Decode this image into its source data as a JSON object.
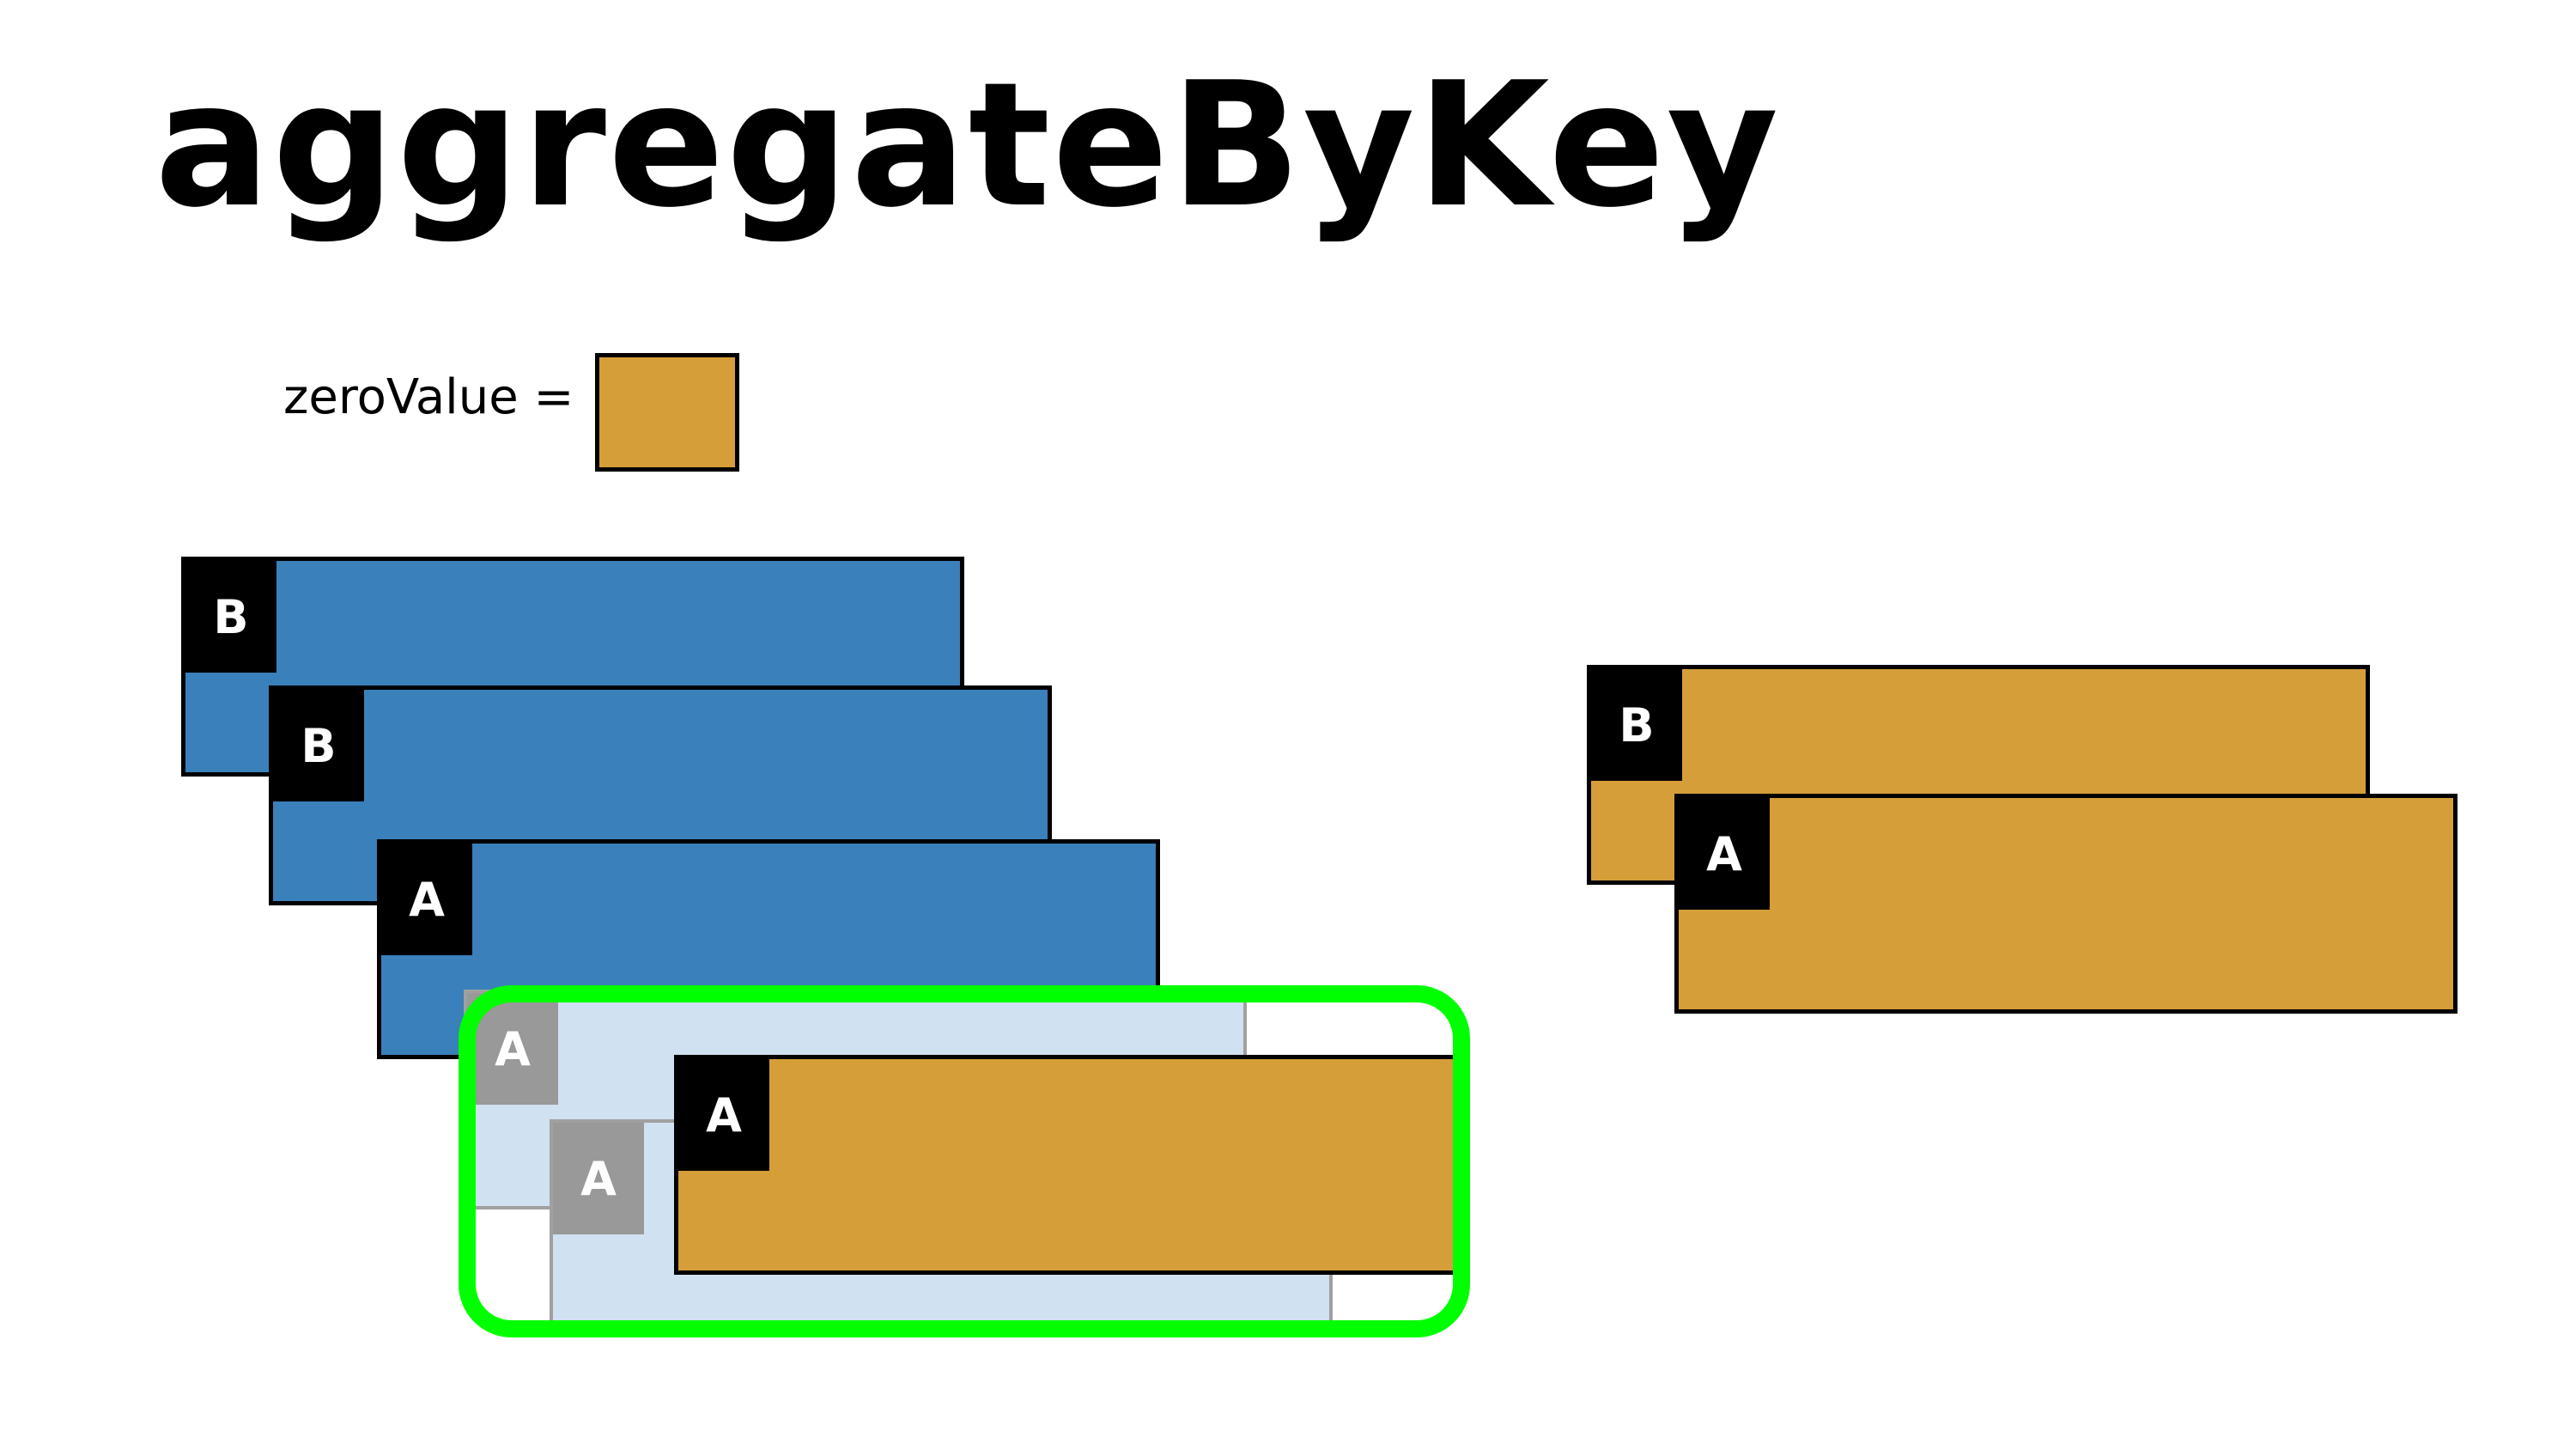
{
  "title": "aggregateByKey",
  "zero_value": {
    "label": "zeroValue =",
    "color": "#D59E39"
  },
  "colors": {
    "input_record": "#3A80BA",
    "accumulated_record": "#D59E39",
    "faded_record": "#D0E1F1",
    "key_box": "#000000",
    "faded_key_box": "#999999",
    "highlight": "#00FF00"
  },
  "input_records": [
    {
      "key": "B"
    },
    {
      "key": "B"
    },
    {
      "key": "A"
    }
  ],
  "faded_records": [
    {
      "key": "A"
    },
    {
      "key": "A"
    }
  ],
  "accumulator_record": {
    "key": "A"
  },
  "result_records": [
    {
      "key": "B"
    },
    {
      "key": "A"
    }
  ]
}
